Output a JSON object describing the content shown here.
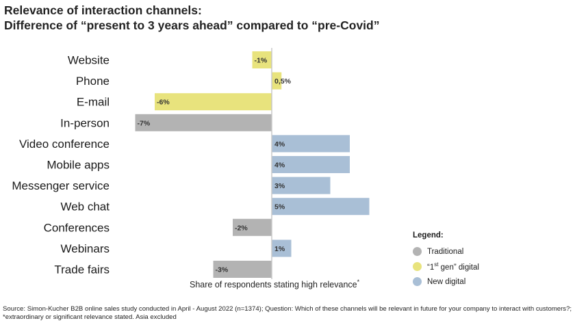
{
  "title_line1": "Relevance of interaction channels:",
  "title_line2": "Difference of “present to 3 years ahead” compared to “pre-Covid”",
  "chart_data": {
    "type": "bar",
    "orientation": "horizontal",
    "categories": [
      "Website",
      "Phone",
      "E-mail",
      "In-person",
      "Video conference",
      "Mobile apps",
      "Messenger service",
      "Web chat",
      "Conferences",
      "Webinars",
      "Trade fairs"
    ],
    "values": [
      -1,
      0.5,
      -6,
      -7,
      4,
      4,
      3,
      5,
      -2,
      1,
      -3
    ],
    "value_labels": [
      "-1%",
      "0,5%",
      "-6%",
      "-7%",
      "4%",
      "4%",
      "3%",
      "5%",
      "-2%",
      "1%",
      "-3%"
    ],
    "groups": [
      "1st gen digital",
      "1st gen digital",
      "1st gen digital",
      "Traditional",
      "New digital",
      "New digital",
      "New digital",
      "New digital",
      "Traditional",
      "New digital",
      "Traditional"
    ],
    "xlabel": "Share of respondents stating high relevance",
    "xlabel_mark": "*",
    "xlim": [
      -7,
      5
    ],
    "grid": false,
    "legend_placement": "bottom-right"
  },
  "legend": {
    "title": "Legend:",
    "items": [
      {
        "key": "Traditional",
        "label": "Traditional",
        "color": "#b3b3b3"
      },
      {
        "key": "1st gen digital",
        "label_pre": "“1",
        "label_sup": "st",
        "label_post": " gen” digital",
        "color": "#e8e37d"
      },
      {
        "key": "New digital",
        "label": "New digital",
        "color": "#a9bfd6"
      }
    ]
  },
  "source": "Source: Simon-Kucher B2B online sales study conducted in April - August 2022 (n=1374); Question: Which of these channels will be relevant in future for your company to interact with customers?; *extraordinary or significant relevance stated. Asia excluded"
}
